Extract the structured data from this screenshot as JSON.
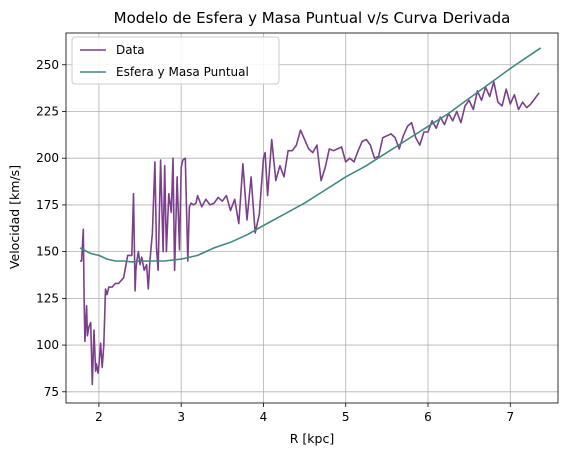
{
  "chart_data": {
    "type": "line",
    "title": "Modelo de Esfera y Masa Puntual v/s Curva Derivada",
    "xlabel": "R [kpc]",
    "ylabel": "Velocidad [km/s]",
    "xlim": [
      1.6,
      7.58
    ],
    "ylim": [
      69,
      267
    ],
    "xticks": [
      2,
      3,
      4,
      5,
      6,
      7
    ],
    "yticks": [
      75,
      100,
      125,
      150,
      175,
      200,
      225,
      250
    ],
    "grid": true,
    "legend_position": "top-left",
    "series": [
      {
        "name": "Data",
        "color": "#7b3f8c",
        "x": [
          1.77,
          1.79,
          1.81,
          1.82,
          1.83,
          1.85,
          1.86,
          1.88,
          1.9,
          1.92,
          1.94,
          1.96,
          1.97,
          1.99,
          2.0,
          2.02,
          2.04,
          2.06,
          2.08,
          2.1,
          2.12,
          2.14,
          2.16,
          2.18,
          2.2,
          2.22,
          2.24,
          2.26,
          2.3,
          2.35,
          2.4,
          2.42,
          2.44,
          2.45,
          2.46,
          2.48,
          2.5,
          2.52,
          2.55,
          2.58,
          2.6,
          2.62,
          2.65,
          2.68,
          2.7,
          2.72,
          2.75,
          2.78,
          2.8,
          2.82,
          2.85,
          2.88,
          2.9,
          2.92,
          2.95,
          2.98,
          3.0,
          3.02,
          3.05,
          3.08,
          3.1,
          3.12,
          3.15,
          3.18,
          3.2,
          3.25,
          3.3,
          3.35,
          3.4,
          3.45,
          3.5,
          3.55,
          3.6,
          3.65,
          3.7,
          3.75,
          3.8,
          3.85,
          3.9,
          3.95,
          4.0,
          4.02,
          4.05,
          4.1,
          4.15,
          4.2,
          4.25,
          4.3,
          4.35,
          4.4,
          4.45,
          4.5,
          4.55,
          4.6,
          4.65,
          4.7,
          4.75,
          4.8,
          4.85,
          4.9,
          4.95,
          5.0,
          5.05,
          5.1,
          5.15,
          5.2,
          5.25,
          5.3,
          5.35,
          5.4,
          5.45,
          5.5,
          5.55,
          5.6,
          5.65,
          5.7,
          5.75,
          5.8,
          5.85,
          5.9,
          5.95,
          6.0,
          6.05,
          6.1,
          6.15,
          6.2,
          6.25,
          6.3,
          6.35,
          6.4,
          6.45,
          6.5,
          6.55,
          6.6,
          6.65,
          6.7,
          6.75,
          6.8,
          6.85,
          6.9,
          6.95,
          7.0,
          7.05,
          7.1,
          7.15,
          7.2,
          7.25,
          7.3,
          7.35
        ],
        "y": [
          145,
          145,
          162,
          126,
          102,
          121,
          105,
          110,
          112,
          79,
          108,
          86,
          90,
          85,
          89,
          101,
          88,
          100,
          130,
          127,
          131,
          131,
          131,
          132,
          133,
          133,
          133,
          134,
          136,
          148,
          148,
          181,
          129,
          140,
          145,
          150,
          143,
          147,
          140,
          143,
          130,
          145,
          160,
          198,
          152,
          140,
          199,
          150,
          196,
          150,
          181,
          171,
          200,
          140,
          190,
          151,
          195,
          199,
          200,
          145,
          174,
          176,
          175,
          176,
          180,
          174,
          178,
          175,
          176,
          179,
          177,
          180,
          172,
          178,
          165,
          197,
          167,
          190,
          160,
          170,
          200,
          203,
          180,
          210,
          188,
          196,
          190,
          204,
          204,
          207,
          215,
          210,
          205,
          203,
          207,
          188,
          195,
          205,
          204,
          205,
          206,
          198,
          200,
          198,
          204,
          209,
          210,
          207,
          200,
          201,
          211,
          212,
          213,
          211,
          205,
          212,
          217,
          219,
          211,
          207,
          214,
          214,
          220,
          216,
          222,
          218,
          224,
          220,
          225,
          219,
          228,
          231,
          226,
          236,
          231,
          238,
          233,
          241,
          230,
          228,
          237,
          229,
          234,
          226,
          230,
          227,
          229,
          232,
          235
        ]
      },
      {
        "name": "Esfera y Masa Puntual",
        "color": "#3f8a80",
        "x": [
          1.77,
          1.9,
          2.0,
          2.1,
          2.2,
          2.3,
          2.4,
          2.5,
          2.6,
          2.7,
          2.8,
          3.0,
          3.2,
          3.4,
          3.6,
          3.8,
          4.0,
          4.25,
          4.5,
          4.75,
          5.0,
          5.25,
          5.5,
          5.75,
          6.0,
          6.25,
          6.5,
          6.75,
          7.0,
          7.2,
          7.37
        ],
        "y": [
          152,
          149,
          148,
          146,
          145,
          145,
          144.5,
          145,
          145,
          145,
          145,
          146,
          148,
          152,
          155,
          159,
          164,
          170,
          176,
          183,
          190,
          196,
          203,
          210,
          217,
          224,
          232,
          240,
          248,
          254,
          259
        ]
      }
    ]
  }
}
